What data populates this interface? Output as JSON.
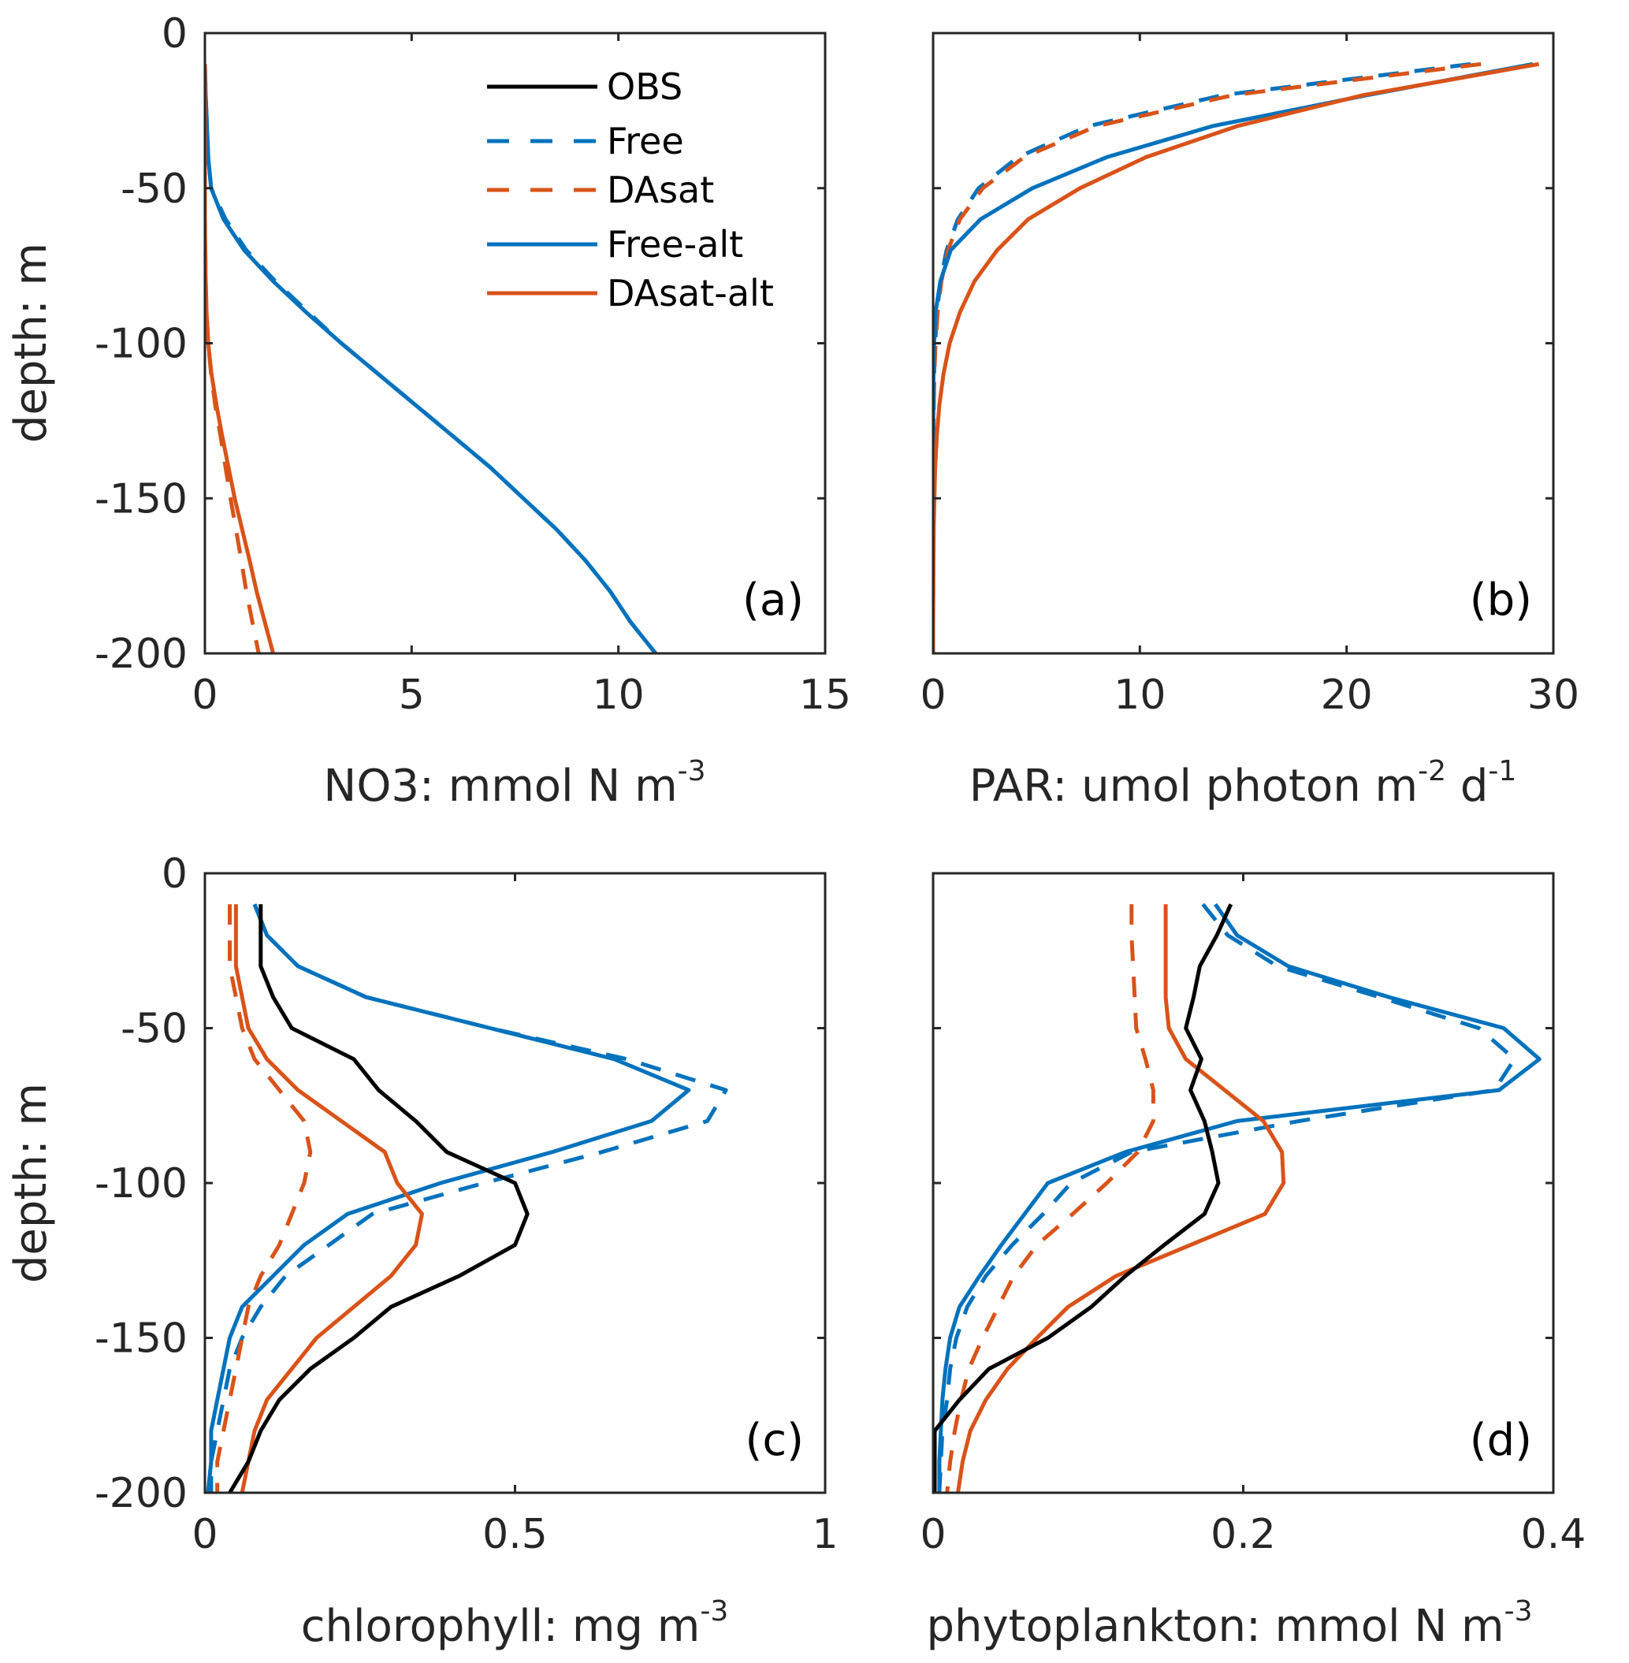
{
  "figure": {
    "series_styles": {
      "OBS": {
        "color": "#000000",
        "dash": "solid"
      },
      "Free": {
        "color": "#0072BD",
        "dash": "dashed"
      },
      "DAsat": {
        "color": "#D95319",
        "dash": "dashed"
      },
      "Free-alt": {
        "color": "#0072BD",
        "dash": "solid"
      },
      "DAsat-alt": {
        "color": "#D95319",
        "dash": "solid"
      }
    },
    "legend": {
      "placement": "top-right of panel (a)",
      "entries": [
        "OBS",
        "Free",
        "DAsat",
        "Free-alt",
        "DAsat-alt"
      ]
    }
  },
  "chart_data": [
    {
      "type": "line",
      "panel_label": "(a)",
      "title": "",
      "xlabel": "NO3: mmol N m",
      "xlabel_sup": "-3",
      "ylabel": "depth: m",
      "xlim": [
        0,
        15
      ],
      "ylim": [
        -200,
        0
      ],
      "xticks": [
        "0",
        "5",
        "10",
        "15"
      ],
      "xtick_values": [
        0,
        5,
        10,
        15
      ],
      "yticks": [
        "0",
        "-50",
        "-100",
        "-150",
        "-200"
      ],
      "ytick_values": [
        0,
        -50,
        -100,
        -150,
        -200
      ],
      "grid": false,
      "depth": [
        -10,
        -20,
        -30,
        -40,
        -50,
        -60,
        -70,
        -80,
        -90,
        -100,
        -110,
        -120,
        -130,
        -140,
        -150,
        -160,
        -170,
        -180,
        -190,
        -200
      ],
      "series": [
        {
          "name": "Free",
          "values": [
            0.0,
            0.02,
            0.05,
            0.08,
            0.15,
            0.5,
            1.0,
            1.7,
            2.5,
            3.3,
            4.2,
            5.1,
            6.0,
            6.9,
            7.7,
            8.5,
            9.2,
            9.8,
            10.3,
            10.9
          ]
        },
        {
          "name": "DAsat",
          "values": [
            0.0,
            0.0,
            0.0,
            0.0,
            0.0,
            0.0,
            0.01,
            0.02,
            0.04,
            0.08,
            0.15,
            0.25,
            0.38,
            0.5,
            0.62,
            0.75,
            0.88,
            1.0,
            1.15,
            1.3
          ]
        },
        {
          "name": "Free-alt",
          "values": [
            0.0,
            0.02,
            0.05,
            0.08,
            0.15,
            0.45,
            0.95,
            1.65,
            2.45,
            3.3,
            4.2,
            5.1,
            6.0,
            6.9,
            7.7,
            8.5,
            9.2,
            9.8,
            10.3,
            10.9
          ]
        },
        {
          "name": "DAsat-alt",
          "values": [
            0.0,
            0.0,
            0.0,
            0.0,
            0.0,
            0.0,
            0.01,
            0.02,
            0.04,
            0.08,
            0.16,
            0.28,
            0.42,
            0.57,
            0.72,
            0.9,
            1.08,
            1.25,
            1.45,
            1.65
          ]
        }
      ]
    },
    {
      "type": "line",
      "panel_label": "(b)",
      "title": "",
      "xlabel": "PAR: umol photon m",
      "xlabel_sup1": "-2",
      "xlabel_mid": " d",
      "xlabel_sup2": "-1",
      "ylabel": "",
      "xlim": [
        0,
        30
      ],
      "ylim": [
        -200,
        0
      ],
      "xticks": [
        "0",
        "10",
        "20",
        "30"
      ],
      "xtick_values": [
        0,
        10,
        20,
        30
      ],
      "yticks": [],
      "ytick_values": [
        0,
        -50,
        -100,
        -150,
        -200
      ],
      "grid": false,
      "depth": [
        -10,
        -20,
        -30,
        -40,
        -50,
        -60,
        -70,
        -80,
        -90,
        -100,
        -110,
        -120,
        -130,
        -140,
        -150,
        -160,
        -170,
        -180,
        -190,
        -200
      ],
      "series": [
        {
          "name": "Free",
          "values": [
            26.0,
            14.0,
            7.5,
            4.1,
            2.2,
            1.2,
            0.65,
            0.35,
            0.19,
            0.1,
            0.05,
            0.03,
            0.02,
            0.01,
            0.0,
            0.0,
            0.0,
            0.0,
            0.0,
            0.0
          ]
        },
        {
          "name": "DAsat",
          "values": [
            26.5,
            14.5,
            7.9,
            4.4,
            2.4,
            1.3,
            0.72,
            0.4,
            0.22,
            0.12,
            0.06,
            0.03,
            0.02,
            0.01,
            0.0,
            0.0,
            0.0,
            0.0,
            0.0,
            0.0
          ]
        },
        {
          "name": "Free-alt",
          "values": [
            29.0,
            21.0,
            13.5,
            8.4,
            4.8,
            2.3,
            0.85,
            0.35,
            0.12,
            0.05,
            0.02,
            0.01,
            0.0,
            0.0,
            0.0,
            0.0,
            0.0,
            0.0,
            0.0,
            0.0
          ]
        },
        {
          "name": "DAsat-alt",
          "values": [
            29.3,
            20.8,
            14.7,
            10.3,
            7.1,
            4.6,
            3.1,
            2.0,
            1.3,
            0.8,
            0.5,
            0.3,
            0.18,
            0.1,
            0.06,
            0.03,
            0.02,
            0.01,
            0.0,
            0.0
          ]
        }
      ]
    },
    {
      "type": "line",
      "panel_label": "(c)",
      "title": "",
      "xlabel": "chlorophyll: mg m",
      "xlabel_sup": "-3",
      "ylabel": "depth: m",
      "xlim": [
        0,
        1
      ],
      "ylim": [
        -200,
        0
      ],
      "xticks": [
        "0",
        "0.5",
        "1"
      ],
      "xtick_values": [
        0,
        0.5,
        1
      ],
      "yticks": [
        "0",
        "-50",
        "-100",
        "-150",
        "-200"
      ],
      "ytick_values": [
        0,
        -50,
        -100,
        -150,
        -200
      ],
      "grid": false,
      "depth": [
        -10,
        -20,
        -30,
        -40,
        -50,
        -60,
        -70,
        -80,
        -90,
        -100,
        -110,
        -120,
        -130,
        -140,
        -150,
        -160,
        -170,
        -180,
        -190,
        -200
      ],
      "series": [
        {
          "name": "OBS",
          "values": [
            0.09,
            0.09,
            0.09,
            0.11,
            0.14,
            0.24,
            0.28,
            0.34,
            0.39,
            0.5,
            0.52,
            0.5,
            0.41,
            0.3,
            0.24,
            0.17,
            0.12,
            0.09,
            0.07,
            0.04
          ]
        },
        {
          "name": "Free",
          "values": [
            0.08,
            0.1,
            0.15,
            0.26,
            0.46,
            0.68,
            0.84,
            0.81,
            0.64,
            0.45,
            0.27,
            0.2,
            0.13,
            0.09,
            0.06,
            0.04,
            0.03,
            0.02,
            0.01,
            0.01
          ]
        },
        {
          "name": "DAsat",
          "values": [
            0.04,
            0.04,
            0.04,
            0.05,
            0.06,
            0.08,
            0.12,
            0.16,
            0.17,
            0.16,
            0.14,
            0.12,
            0.09,
            0.07,
            0.06,
            0.05,
            0.04,
            0.03,
            0.02,
            0.02
          ]
        },
        {
          "name": "Free-alt",
          "values": [
            0.08,
            0.1,
            0.15,
            0.26,
            0.46,
            0.66,
            0.78,
            0.72,
            0.56,
            0.38,
            0.23,
            0.16,
            0.11,
            0.06,
            0.04,
            0.03,
            0.02,
            0.01,
            0.01,
            0.005
          ]
        },
        {
          "name": "DAsat-alt",
          "values": [
            0.05,
            0.05,
            0.05,
            0.06,
            0.07,
            0.1,
            0.15,
            0.22,
            0.29,
            0.31,
            0.35,
            0.34,
            0.3,
            0.24,
            0.18,
            0.14,
            0.1,
            0.08,
            0.07,
            0.06
          ]
        }
      ]
    },
    {
      "type": "line",
      "panel_label": "(d)",
      "title": "",
      "xlabel": "phytoplankton: mmol N m",
      "xlabel_sup": "-3",
      "ylabel": "",
      "xlim": [
        0,
        0.4
      ],
      "ylim": [
        -200,
        0
      ],
      "xticks": [
        "0",
        "0.2",
        "0.4"
      ],
      "xtick_values": [
        0,
        0.2,
        0.4
      ],
      "yticks": [],
      "ytick_values": [
        0,
        -50,
        -100,
        -150,
        -200
      ],
      "grid": false,
      "depth": [
        -10,
        -20,
        -30,
        -40,
        -50,
        -60,
        -70,
        -80,
        -90,
        -100,
        -110,
        -120,
        -130,
        -140,
        -150,
        -160,
        -170,
        -180,
        -190,
        -200
      ],
      "series": [
        {
          "name": "OBS",
          "values": [
            0.192,
            0.183,
            0.172,
            0.168,
            0.163,
            0.173,
            0.166,
            0.175,
            0.18,
            0.184,
            0.175,
            0.149,
            0.124,
            0.102,
            0.074,
            0.036,
            0.017,
            0.001,
            0.001,
            0.001
          ]
        },
        {
          "name": "Free",
          "values": [
            0.174,
            0.19,
            0.222,
            0.288,
            0.352,
            0.375,
            0.362,
            0.236,
            0.128,
            0.089,
            0.071,
            0.051,
            0.034,
            0.022,
            0.015,
            0.011,
            0.009,
            0.006,
            0.005,
            0.004
          ]
        },
        {
          "name": "DAsat",
          "values": [
            0.128,
            0.128,
            0.129,
            0.13,
            0.131,
            0.137,
            0.142,
            0.142,
            0.132,
            0.112,
            0.09,
            0.067,
            0.052,
            0.042,
            0.032,
            0.023,
            0.018,
            0.014,
            0.011,
            0.009
          ]
        },
        {
          "name": "Free-alt",
          "values": [
            0.182,
            0.196,
            0.229,
            0.294,
            0.368,
            0.391,
            0.365,
            0.196,
            0.124,
            0.074,
            0.059,
            0.044,
            0.03,
            0.017,
            0.011,
            0.008,
            0.006,
            0.005,
            0.004,
            0.004
          ]
        },
        {
          "name": "DAsat-alt",
          "values": [
            0.15,
            0.15,
            0.15,
            0.15,
            0.152,
            0.163,
            0.188,
            0.213,
            0.225,
            0.226,
            0.214,
            0.166,
            0.118,
            0.087,
            0.067,
            0.048,
            0.034,
            0.024,
            0.019,
            0.016
          ]
        }
      ]
    }
  ]
}
